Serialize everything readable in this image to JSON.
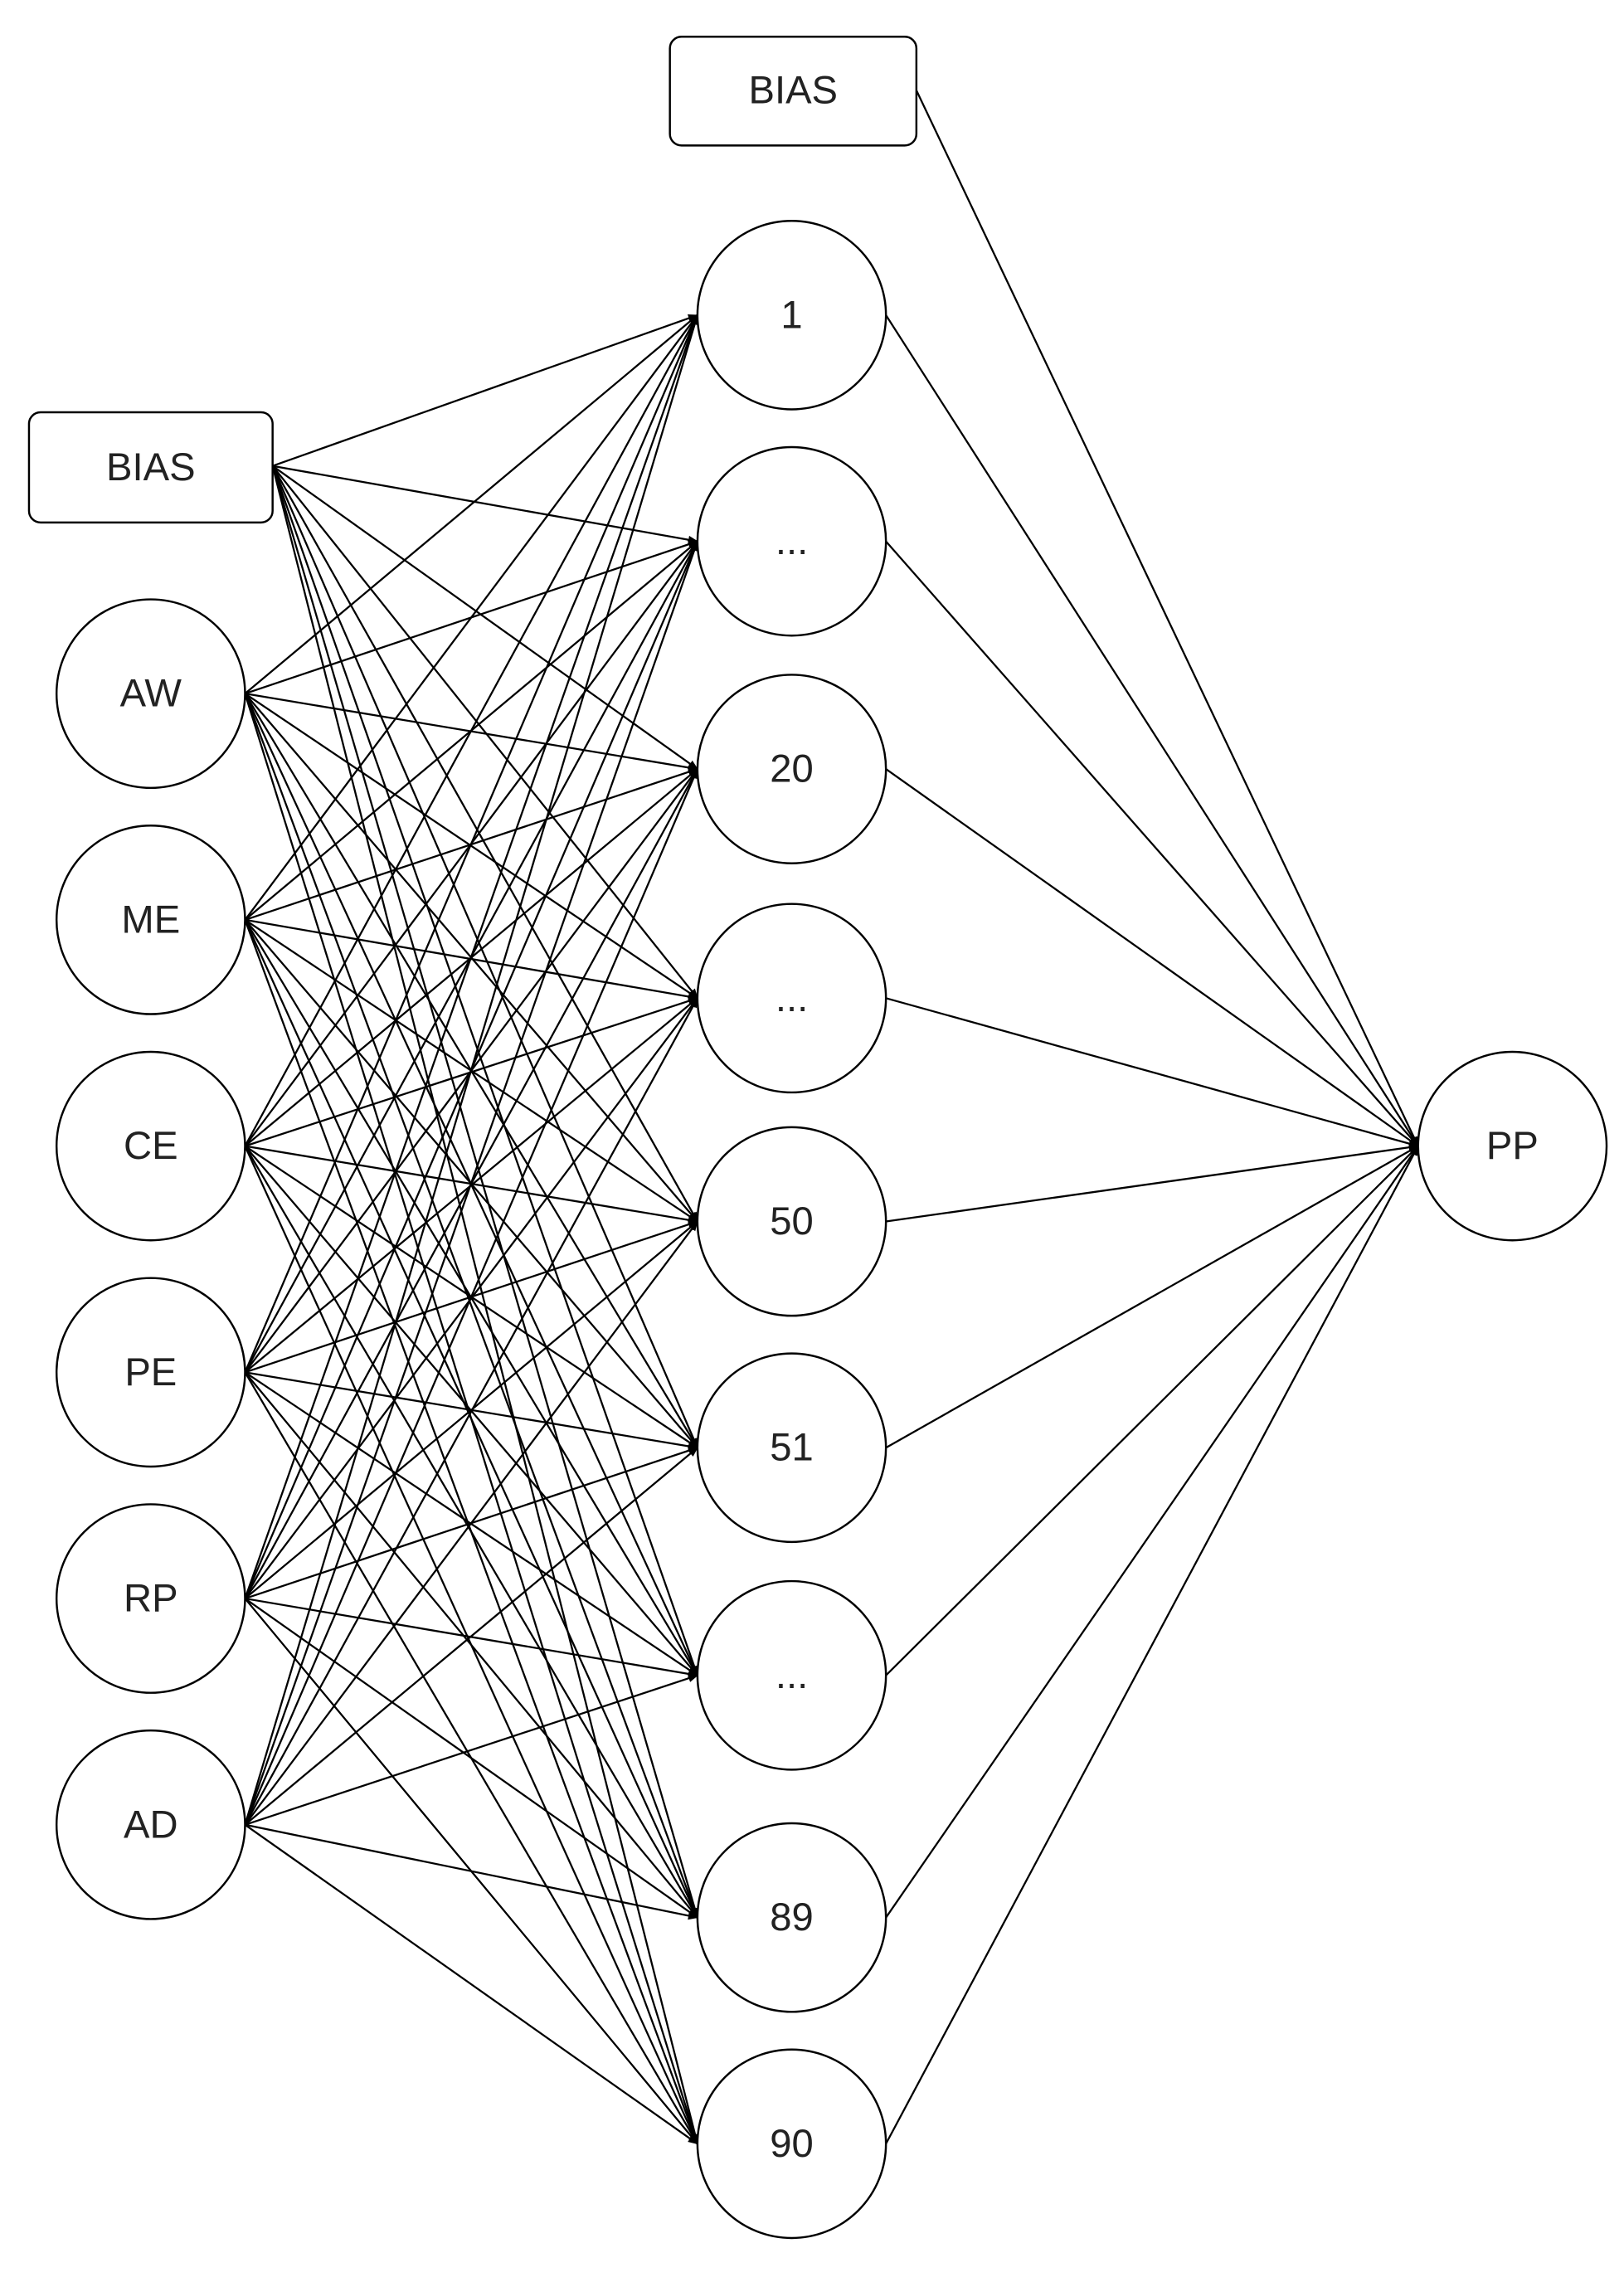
{
  "diagram": {
    "output_bias": {
      "label": "BIAS"
    },
    "input_bias": {
      "label": "BIAS"
    },
    "inputs": [
      {
        "label": "AW"
      },
      {
        "label": "ME"
      },
      {
        "label": "CE"
      },
      {
        "label": "PE"
      },
      {
        "label": "RP"
      },
      {
        "label": "AD"
      }
    ],
    "hidden": [
      {
        "label": "1"
      },
      {
        "label": "..."
      },
      {
        "label": "20"
      },
      {
        "label": "..."
      },
      {
        "label": "50"
      },
      {
        "label": "51"
      },
      {
        "label": "..."
      },
      {
        "label": "89"
      },
      {
        "label": "90"
      }
    ],
    "output": {
      "label": "PP"
    },
    "edge_color": "#000000"
  }
}
